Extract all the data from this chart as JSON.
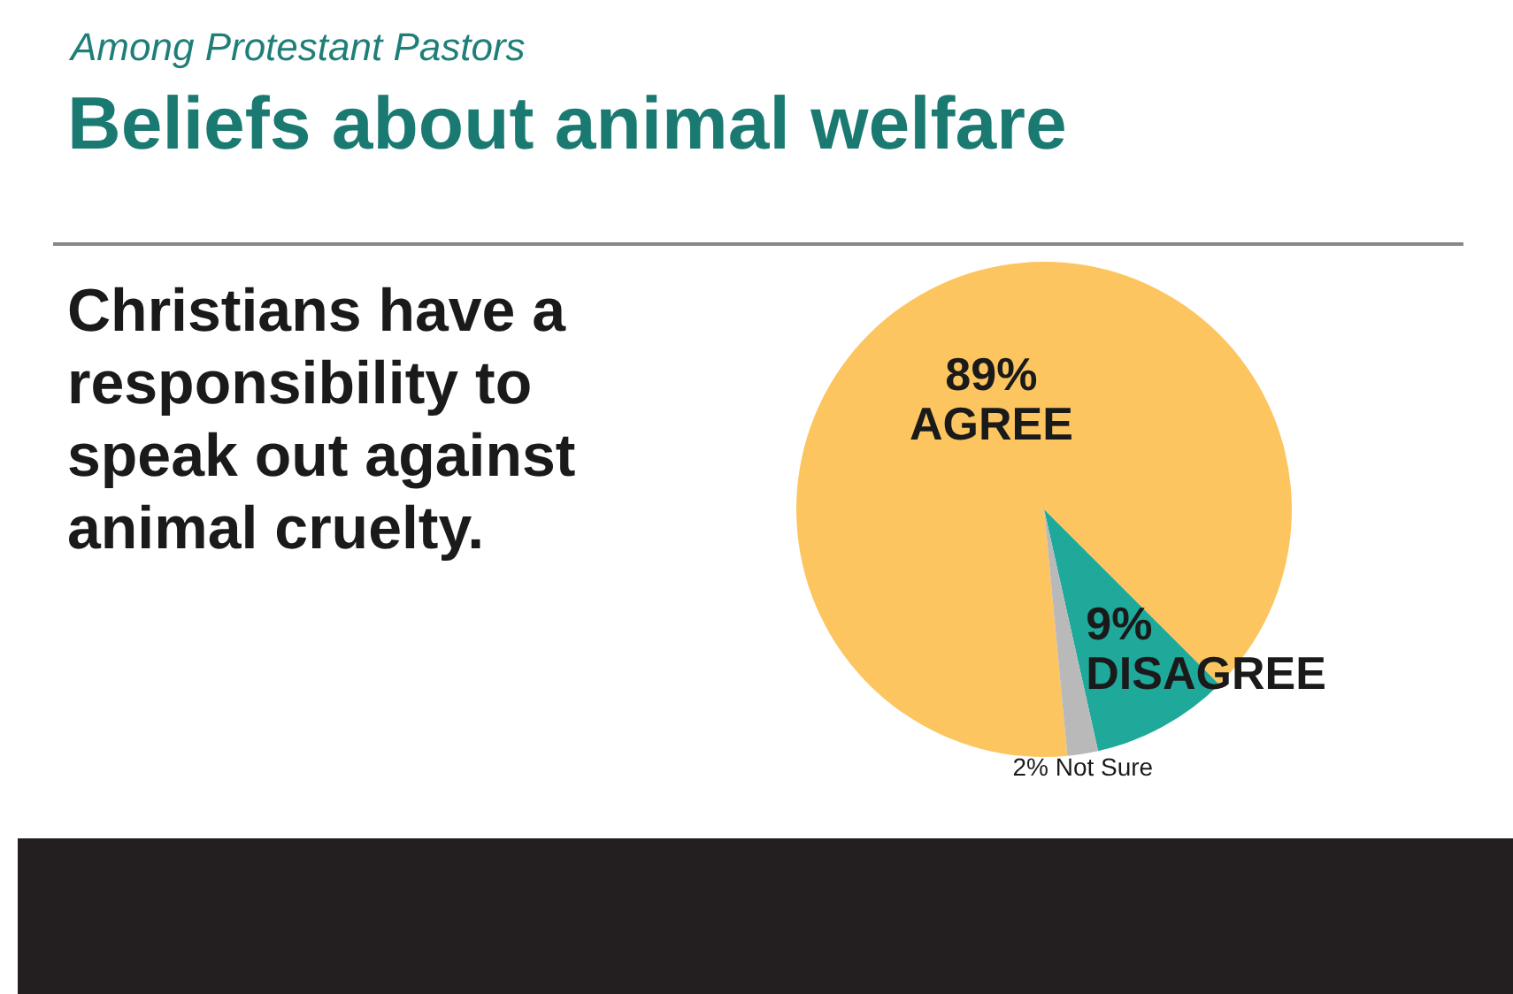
{
  "chart_data": {
    "type": "pie",
    "subtitle": "Among Protestant Pastors",
    "title": "Beliefs about animal welfare",
    "annotations": [
      "Christians have a responsibility to speak out against animal cruelty."
    ],
    "categories": [
      "AGREE",
      "DISAGREE",
      "Not Sure"
    ],
    "values": [
      89,
      9,
      2
    ],
    "colors": [
      "#fcc55f",
      "#1ea99b",
      "#b9b9b9"
    ],
    "value_labels": [
      "89%",
      "9%",
      "2%"
    ],
    "legend": false
  }
}
